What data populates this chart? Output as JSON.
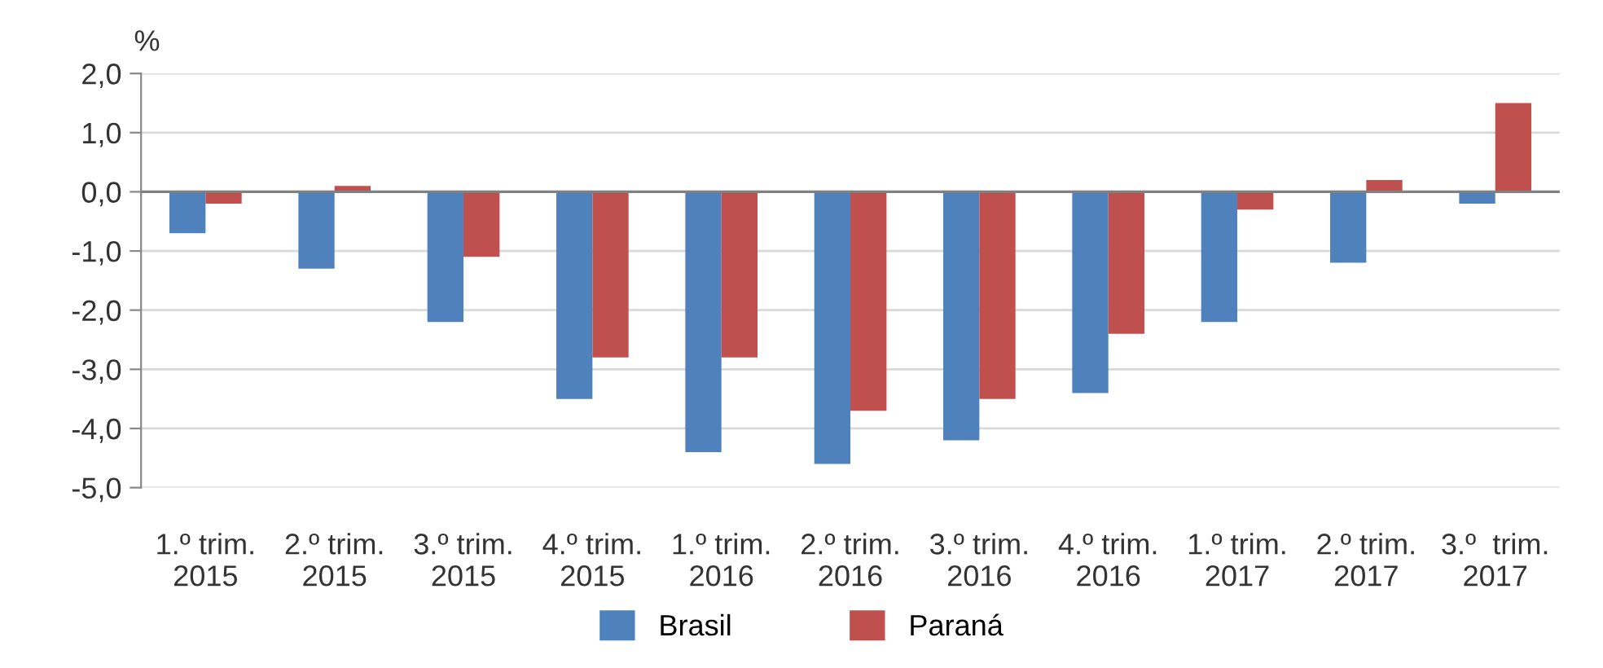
{
  "chart_data": {
    "type": "bar",
    "ylabel": "%",
    "categories": [
      "1.º trim.\n2015",
      "2.º trim.\n2015",
      "3.º trim.\n2015",
      "4.º trim.\n2015",
      "1.º trim.\n2016",
      "2.º trim.\n2016",
      "3.º trim.\n2016",
      "4.º trim.\n2016",
      "1.º trim.\n2017",
      "2.º trim.\n2017",
      "3.º  trim.\n2017"
    ],
    "series": [
      {
        "name": "Brasil",
        "color": "#4f81bd",
        "values": [
          -0.7,
          -1.3,
          -2.2,
          -3.5,
          -4.4,
          -4.6,
          -4.2,
          -3.4,
          -2.2,
          -1.2,
          -0.2
        ]
      },
      {
        "name": "Paraná",
        "color": "#c0504d",
        "values": [
          -0.2,
          0.1,
          -1.1,
          -2.8,
          -2.8,
          -3.7,
          -3.5,
          -2.4,
          -0.3,
          0.2,
          1.5
        ]
      }
    ],
    "ylim": [
      -5,
      2
    ],
    "yticks": [
      {
        "value": -5,
        "label": "-5,0"
      },
      {
        "value": -4,
        "label": "-4,0"
      },
      {
        "value": -3,
        "label": "-3,0"
      },
      {
        "value": -2,
        "label": "-2,0"
      },
      {
        "value": -1,
        "label": "-1,0"
      },
      {
        "value": 0,
        "label": "0,0"
      },
      {
        "value": 1,
        "label": "1,0"
      },
      {
        "value": 2,
        "label": "2,0"
      }
    ],
    "grid": "y",
    "legend": "bottom"
  }
}
